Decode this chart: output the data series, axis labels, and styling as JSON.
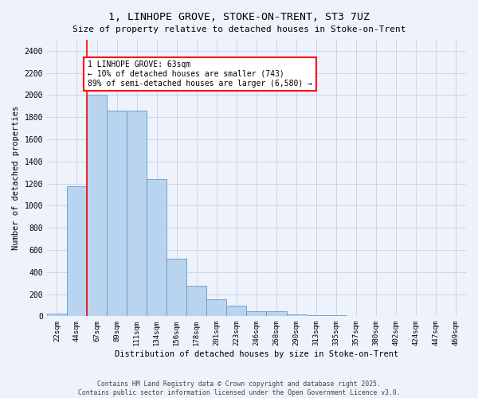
{
  "title": "1, LINHOPE GROVE, STOKE-ON-TRENT, ST3 7UZ",
  "subtitle": "Size of property relative to detached houses in Stoke-on-Trent",
  "xlabel": "Distribution of detached houses by size in Stoke-on-Trent",
  "ylabel": "Number of detached properties",
  "categories": [
    "22sqm",
    "44sqm",
    "67sqm",
    "89sqm",
    "111sqm",
    "134sqm",
    "156sqm",
    "178sqm",
    "201sqm",
    "223sqm",
    "246sqm",
    "268sqm",
    "290sqm",
    "313sqm",
    "335sqm",
    "357sqm",
    "380sqm",
    "402sqm",
    "424sqm",
    "447sqm",
    "469sqm"
  ],
  "values": [
    25,
    1175,
    2000,
    1860,
    1860,
    1240,
    520,
    275,
    155,
    95,
    48,
    42,
    20,
    10,
    8,
    5,
    4,
    3,
    2,
    1,
    1
  ],
  "bar_color": "#b8d4ee",
  "bar_edge_color": "#6699cc",
  "vline_color": "red",
  "vline_pos": 1.5,
  "annotation_text": "1 LINHOPE GROVE: 63sqm\n← 10% of detached houses are smaller (743)\n89% of semi-detached houses are larger (6,580) →",
  "annotation_box_color": "white",
  "annotation_box_edge": "red",
  "ylim": [
    0,
    2500
  ],
  "yticks": [
    0,
    200,
    400,
    600,
    800,
    1000,
    1200,
    1400,
    1600,
    1800,
    2000,
    2200,
    2400
  ],
  "footer_line1": "Contains HM Land Registry data © Crown copyright and database right 2025.",
  "footer_line2": "Contains public sector information licensed under the Open Government Licence v3.0.",
  "bg_color": "#eef2fb",
  "grid_color": "#c8cfe8"
}
